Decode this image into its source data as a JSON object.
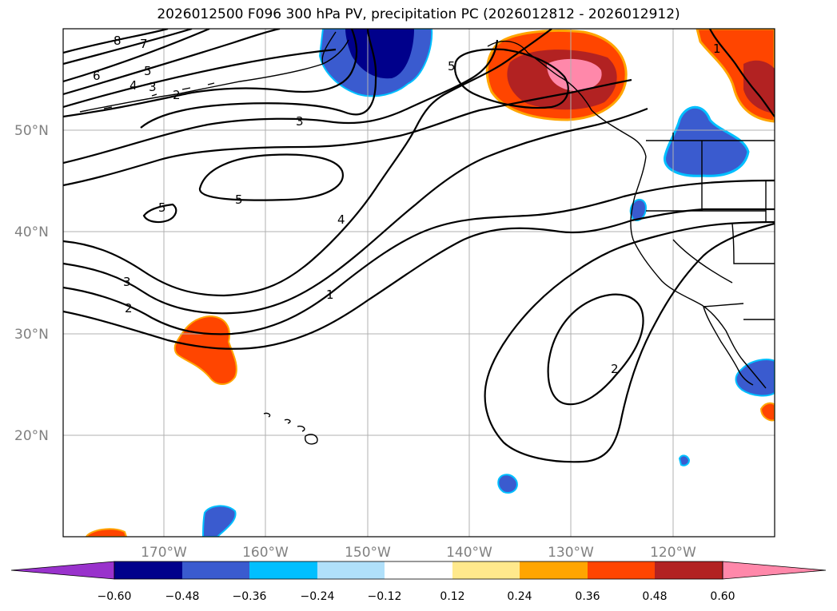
{
  "title": "2026012500 F096 300 hPa PV, precipitation PC (2026012812 - 2026012912)",
  "lat_labels": [
    "50°N",
    "40°N",
    "30°N",
    "20°N"
  ],
  "lon_labels": [
    "170°W",
    "160°W",
    "150°W",
    "140°W",
    "130°W",
    "120°W"
  ],
  "colorbar": {
    "tick_labels": [
      "−0.60",
      "−0.48",
      "−0.36",
      "−0.24",
      "−0.12",
      "0.12",
      "0.24",
      "0.36",
      "0.48",
      "0.60"
    ],
    "colors": [
      "#9932cc",
      "#00008b",
      "#3a5bcf",
      "#00bfff",
      "#b0e0fa",
      "#ffffff",
      "#ffe98c",
      "#ffa500",
      "#ff4500",
      "#b22222",
      "#ff88aa"
    ]
  },
  "contour_labels": [
    "8",
    "7",
    "5",
    "6",
    "4",
    "3",
    "2",
    "3",
    "5",
    "5",
    "4",
    "3",
    "2",
    "1",
    "2",
    "5",
    "1"
  ]
}
